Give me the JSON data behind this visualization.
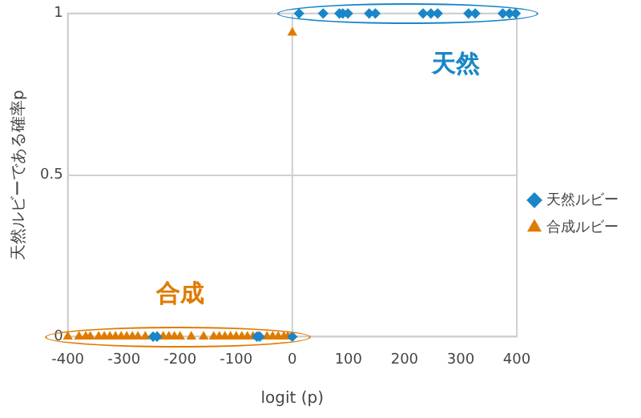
{
  "chart_data": {
    "type": "scatter",
    "xlabel": "logit (p)",
    "ylabel": "天然ルビーである確率p",
    "xlim": [
      -400,
      400
    ],
    "xticks": [
      -400,
      -300,
      -200,
      -100,
      0,
      100,
      200,
      300,
      400
    ],
    "ylim": [
      0,
      1
    ],
    "yticks": [
      0,
      0.5,
      1
    ],
    "grid": "y",
    "legend": "right",
    "ref_lines": [
      {
        "axis": "x",
        "value": 0
      }
    ],
    "annotations": [
      "天然",
      "合成"
    ],
    "series": [
      {
        "name": "天然ルビー",
        "color": "#1a86c8",
        "marker": "diamond",
        "x": [
          12,
          55,
          84,
          90,
          99,
          137,
          148,
          233,
          247,
          259,
          314,
          326,
          375,
          387,
          398,
          -248,
          -241,
          -63,
          -58,
          0
        ],
        "values": [
          1,
          1,
          1,
          1,
          1,
          1,
          1,
          1,
          1,
          1,
          1,
          1,
          1,
          1,
          1,
          0,
          0,
          0,
          0,
          0
        ]
      },
      {
        "name": "合成ルビー",
        "color": "#e07b00",
        "marker": "triangle",
        "x": [
          -400,
          -380,
          -368,
          -360,
          -345,
          -335,
          -325,
          -315,
          -305,
          -295,
          -285,
          -275,
          -262,
          -240,
          -230,
          -220,
          -210,
          -200,
          -180,
          -158,
          -140,
          -130,
          -120,
          -110,
          -100,
          -90,
          -80,
          -70,
          -60,
          -45,
          -35,
          -25,
          -15,
          -8,
          0
        ],
        "values": [
          0,
          0,
          0,
          0,
          0,
          0,
          0,
          0,
          0,
          0,
          0,
          0,
          0,
          0,
          0,
          0,
          0,
          0,
          0,
          0,
          0,
          0,
          0,
          0,
          0,
          0,
          0,
          0,
          0,
          0,
          0,
          0,
          0,
          0,
          0.94
        ]
      }
    ]
  }
}
